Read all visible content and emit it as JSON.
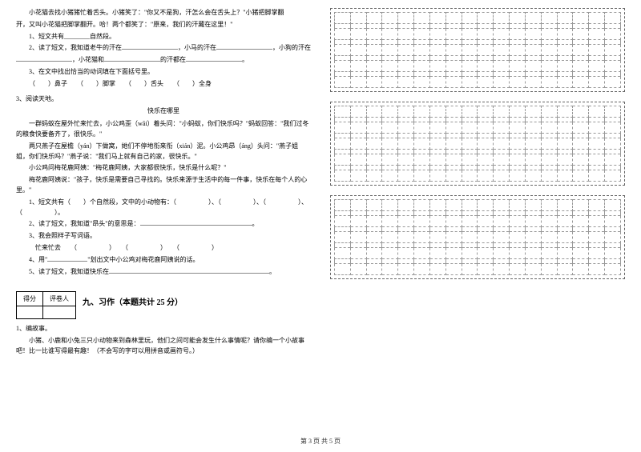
{
  "passage1": {
    "p1": "小花猫去找小猪猪忙着舌头。小猪笑了：\"你又不是狗，汗怎么会在舌头上？\"小猪把脚掌翻",
    "p2": "开，又叫小花猫把脚掌翻开。哈！两个都笑了：\"原来，我们的汗藏在这里！\"",
    "q1": "1、短文共有________自然段。",
    "q2_a": "2、读了短文，我知道老牛的汗在",
    "q2_b": "，小马的汗在",
    "q2_c": "，小狗的汗在",
    "q2_d": "，小花猫和",
    "q2_e": "的汗都在",
    "q2_f": "。",
    "q3": "3、在文中找出恰当的动词填在下面括号里。",
    "q3_opts": "（　　）鼻子　　（　　）脚掌　　（　　）舌头　　（　　）全身"
  },
  "reading3_label": "3、阅读天地。",
  "passage2": {
    "title": "快乐在哪里",
    "p1": "一群蚂蚁在屋外忙来忙去，小公鸡歪（wāi）着头问：\"小蚂蚁，你们快乐吗？\"蚂蚁回答：\"我们过冬的粮食快要备齐了，很快乐。\"",
    "p2": "两只燕子在屋檐（yán）下做窝，她们不停地衔来衔（xián）泥。小公鸡昂（áng）头问：\"燕子姐姐，你们快乐吗？\"燕子说：\"我们马上就有自己的家，很快乐。\"",
    "p3": "小公鸡问梅花鹿阿姨：\"梅花鹿阿姨，大家都很快乐，快乐是什么呢？\"",
    "p4": "梅花鹿阿姨说：\"孩子，快乐是需要自己寻找的。快乐来源于生活中的每一件事，快乐在每个人的心里。\"",
    "q1_a": "1、短文共有（　　）个自然段，文中的小动物有：（　　　　　）、（　　　　　）、（　　　　　）、（　　　　　）。",
    "q2_a": "2、读了短文，我知道\"昂头\"的意思是：",
    "q2_b": "。",
    "q3": "3、我会照样子写词语。",
    "q3_ex": "忙来忙去　　（　　　　　）　　（　　　　　）　　（　　　　　）",
    "q4_a": "4、用\"",
    "q4_b": "\"划出文中小公鸡对梅花鹿阿姨说的话。",
    "q5_a": "5、读了短文，我知道快乐在",
    "q5_b": "。"
  },
  "section9": {
    "score_col1": "得分",
    "score_col2": "评卷人",
    "title": "九、习作（本题共计 25 分）"
  },
  "writing": {
    "label": "1、编故事。",
    "prompt": "小猪、小鹿和小兔三只小动物来到森林里玩，他们之间可能会发生什么事情呢？请你编一个小故事吧！比一比谁写得最有趣！（不会写的字可以用拼音或画符号。）"
  },
  "footer": "第 3 页 共 5 页"
}
